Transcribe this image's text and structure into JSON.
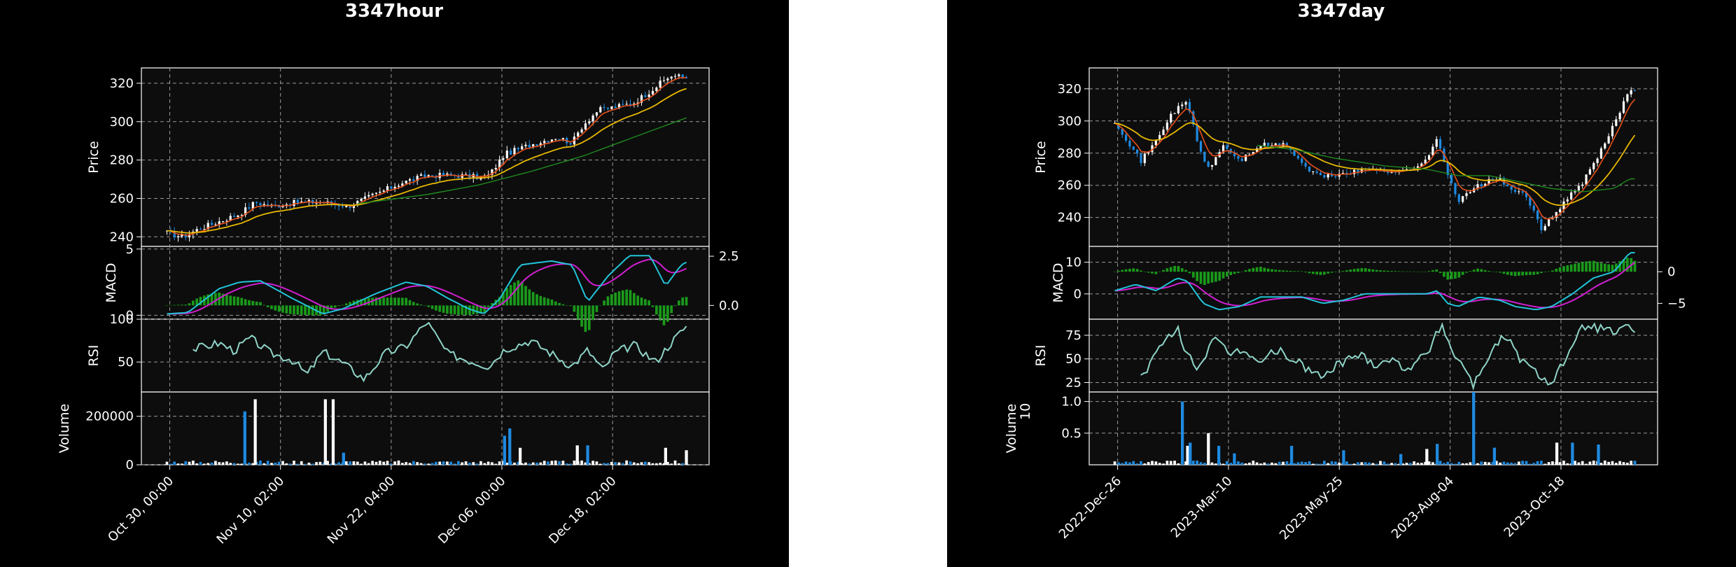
{
  "colors": {
    "background": "#000000",
    "plot_face": "#0d0d0d",
    "grid": "#9a9a9a",
    "up_candle": "#ffffff",
    "down_candle": "#1f8ae0",
    "ma_fast": "#e8501a",
    "ma_mid": "#e8b800",
    "ma_slow": "#1f8a1f",
    "macd_line": "#22c4d8",
    "signal_line": "#d21fd2",
    "hist": "#1a9a1a",
    "rsi": "#8fd4c8",
    "vol_up": "#ffffff",
    "vol_down": "#1f8ae0"
  },
  "chart_data": [
    {
      "id": "hour",
      "type": "candlestick",
      "title": "3347hour",
      "panels": {
        "price": {
          "ylabel": "Price",
          "ylim": [
            235,
            328
          ],
          "yticks": [
            240,
            260,
            280,
            300,
            320
          ]
        },
        "macd": {
          "ylabel": "MACD",
          "ylim": [
            -0.3,
            5.2
          ],
          "yticks_left": [
            0,
            5
          ],
          "ylim_right": [
            -0.7,
            3.0
          ],
          "yticks_right": [
            0.0,
            2.5
          ],
          "yticks_right_labels": [
            "0.0",
            "2.5"
          ]
        },
        "rsi": {
          "ylabel": "RSI",
          "ylim": [
            15,
            100
          ],
          "yticks": [
            50,
            100
          ]
        },
        "volume": {
          "ylabel": "Volume",
          "ylim": [
            0,
            300000
          ],
          "yticks": [
            0,
            200000
          ]
        }
      },
      "xticks": [
        {
          "pos": 0.05,
          "label": "Oct 30, 00:00"
        },
        {
          "pos": 0.245,
          "label": "Nov 10, 02:00"
        },
        {
          "pos": 0.44,
          "label": "Nov 22, 04:00"
        },
        {
          "pos": 0.635,
          "label": "Dec 06, 00:00"
        },
        {
          "pos": 0.83,
          "label": "Dec 18, 02:00"
        }
      ],
      "close_anchors": [
        [
          0,
          242
        ],
        [
          0.03,
          240
        ],
        [
          0.06,
          244
        ],
        [
          0.1,
          248
        ],
        [
          0.14,
          252
        ],
        [
          0.17,
          258
        ],
        [
          0.2,
          256
        ],
        [
          0.25,
          258
        ],
        [
          0.3,
          258
        ],
        [
          0.35,
          256
        ],
        [
          0.4,
          262
        ],
        [
          0.45,
          268
        ],
        [
          0.5,
          272
        ],
        [
          0.56,
          272
        ],
        [
          0.6,
          271
        ],
        [
          0.62,
          272
        ],
        [
          0.65,
          283
        ],
        [
          0.7,
          288
        ],
        [
          0.75,
          292
        ],
        [
          0.78,
          289
        ],
        [
          0.8,
          298
        ],
        [
          0.83,
          306
        ],
        [
          0.87,
          308
        ],
        [
          0.9,
          310
        ],
        [
          0.94,
          318
        ],
        [
          0.97,
          324
        ],
        [
          1.0,
          323
        ]
      ],
      "ma_slow_anchors": [
        [
          0.36,
          257
        ],
        [
          0.5,
          262
        ],
        [
          0.6,
          267
        ],
        [
          0.7,
          274
        ],
        [
          0.8,
          282
        ],
        [
          0.9,
          292
        ],
        [
          1.0,
          302
        ]
      ],
      "macd_anchors": [
        [
          0,
          0.1
        ],
        [
          0.04,
          0.2
        ],
        [
          0.1,
          2.0
        ],
        [
          0.14,
          2.5
        ],
        [
          0.18,
          2.6
        ],
        [
          0.24,
          1.3
        ],
        [
          0.3,
          0.1
        ],
        [
          0.34,
          0.5
        ],
        [
          0.4,
          1.6
        ],
        [
          0.46,
          2.5
        ],
        [
          0.5,
          2.2
        ],
        [
          0.54,
          1.3
        ],
        [
          0.58,
          0.5
        ],
        [
          0.61,
          0.1
        ],
        [
          0.64,
          1.2
        ],
        [
          0.68,
          3.8
        ],
        [
          0.74,
          4.1
        ],
        [
          0.78,
          3.8
        ],
        [
          0.81,
          1.0
        ],
        [
          0.85,
          3.0
        ],
        [
          0.89,
          4.5
        ],
        [
          0.93,
          4.5
        ],
        [
          0.96,
          2.2
        ],
        [
          0.99,
          3.8
        ],
        [
          1.0,
          4.0
        ]
      ],
      "rsi_anchors": [
        [
          0.05,
          65
        ],
        [
          0.1,
          72
        ],
        [
          0.13,
          63
        ],
        [
          0.16,
          78
        ],
        [
          0.2,
          60
        ],
        [
          0.24,
          53
        ],
        [
          0.27,
          35
        ],
        [
          0.3,
          62
        ],
        [
          0.34,
          48
        ],
        [
          0.38,
          30
        ],
        [
          0.42,
          60
        ],
        [
          0.46,
          68
        ],
        [
          0.5,
          97
        ],
        [
          0.54,
          60
        ],
        [
          0.58,
          52
        ],
        [
          0.62,
          45
        ],
        [
          0.65,
          65
        ],
        [
          0.7,
          75
        ],
        [
          0.74,
          60
        ],
        [
          0.78,
          45
        ],
        [
          0.81,
          64
        ],
        [
          0.84,
          40
        ],
        [
          0.86,
          60
        ],
        [
          0.9,
          70
        ],
        [
          0.94,
          50
        ],
        [
          0.97,
          72
        ],
        [
          1.0,
          92
        ],
        [
          1.02,
          78
        ]
      ],
      "volume_spikes": [
        [
          0.15,
          220000,
          1
        ],
        [
          0.17,
          270000,
          0
        ],
        [
          0.305,
          270000,
          0
        ],
        [
          0.32,
          270000,
          0
        ],
        [
          0.34,
          50000,
          1
        ],
        [
          0.65,
          120000,
          1
        ],
        [
          0.66,
          150000,
          1
        ],
        [
          0.68,
          70000,
          0
        ],
        [
          0.79,
          80000,
          0
        ],
        [
          0.81,
          80000,
          1
        ],
        [
          0.96,
          70000,
          0
        ],
        [
          1.0,
          60000,
          0
        ]
      ]
    },
    {
      "id": "day",
      "type": "candlestick",
      "title": "3347day",
      "panels": {
        "price": {
          "ylabel": "Price",
          "ylim": [
            222,
            333
          ],
          "yticks": [
            240,
            260,
            280,
            300,
            320
          ]
        },
        "macd": {
          "ylabel": "MACD",
          "ylim": [
            -8,
            15
          ],
          "yticks_left": [
            0,
            10
          ],
          "ylim_right": [
            -7.5,
            4.0
          ],
          "yticks_right": [
            -5,
            0
          ],
          "yticks_right_labels": [
            "−5",
            "0"
          ]
        },
        "rsi": {
          "ylabel": "RSI",
          "ylim": [
            15,
            92
          ],
          "yticks": [
            25,
            50,
            75
          ]
        },
        "volume": {
          "ylabel": "Volume",
          "ylim": [
            0,
            1150000
          ],
          "yticks": [
            500000,
            1000000
          ],
          "ytick_labels": [
            "0.5",
            "1.0"
          ],
          "offset_label": "1e6"
        }
      },
      "xticks": [
        {
          "pos": 0.05,
          "label": "2022-Dec-26"
        },
        {
          "pos": 0.245,
          "label": "2023-Mar-10"
        },
        {
          "pos": 0.44,
          "label": "2023-May-25"
        },
        {
          "pos": 0.635,
          "label": "2023-Aug-04"
        },
        {
          "pos": 0.83,
          "label": "2023-Oct-18"
        }
      ],
      "close_anchors": [
        [
          0,
          300
        ],
        [
          0.03,
          285
        ],
        [
          0.05,
          275
        ],
        [
          0.08,
          288
        ],
        [
          0.11,
          305
        ],
        [
          0.14,
          312
        ],
        [
          0.16,
          285
        ],
        [
          0.18,
          270
        ],
        [
          0.21,
          285
        ],
        [
          0.24,
          275
        ],
        [
          0.28,
          285
        ],
        [
          0.33,
          285
        ],
        [
          0.37,
          270
        ],
        [
          0.4,
          265
        ],
        [
          0.45,
          268
        ],
        [
          0.5,
          270
        ],
        [
          0.55,
          268
        ],
        [
          0.6,
          275
        ],
        [
          0.62,
          290
        ],
        [
          0.64,
          268
        ],
        [
          0.66,
          250
        ],
        [
          0.7,
          260
        ],
        [
          0.74,
          265
        ],
        [
          0.76,
          256
        ],
        [
          0.79,
          255
        ],
        [
          0.82,
          232
        ],
        [
          0.84,
          240
        ],
        [
          0.86,
          248
        ],
        [
          0.9,
          262
        ],
        [
          0.93,
          278
        ],
        [
          0.96,
          298
        ],
        [
          0.99,
          320
        ]
      ],
      "ma_slow_anchors": [
        [
          0.27,
          285
        ],
        [
          0.35,
          282
        ],
        [
          0.42,
          277
        ],
        [
          0.52,
          272
        ],
        [
          0.6,
          270
        ],
        [
          0.66,
          266
        ],
        [
          0.72,
          266
        ],
        [
          0.78,
          262
        ],
        [
          0.84,
          258
        ],
        [
          0.9,
          256
        ],
        [
          0.96,
          258
        ],
        [
          0.99,
          264
        ]
      ],
      "macd_anchors": [
        [
          0,
          1
        ],
        [
          0.04,
          3
        ],
        [
          0.08,
          1
        ],
        [
          0.12,
          5
        ],
        [
          0.14,
          4
        ],
        [
          0.17,
          -3
        ],
        [
          0.2,
          -5
        ],
        [
          0.24,
          -4
        ],
        [
          0.28,
          -1
        ],
        [
          0.32,
          -1
        ],
        [
          0.36,
          -1
        ],
        [
          0.4,
          -3
        ],
        [
          0.44,
          -2
        ],
        [
          0.48,
          0
        ],
        [
          0.52,
          0
        ],
        [
          0.56,
          0
        ],
        [
          0.6,
          0
        ],
        [
          0.62,
          1
        ],
        [
          0.64,
          -3
        ],
        [
          0.66,
          -4
        ],
        [
          0.7,
          -1
        ],
        [
          0.74,
          -2
        ],
        [
          0.77,
          -4
        ],
        [
          0.81,
          -5
        ],
        [
          0.84,
          -4
        ],
        [
          0.88,
          0
        ],
        [
          0.92,
          5
        ],
        [
          0.96,
          7
        ],
        [
          0.99,
          13
        ]
      ],
      "rsi_anchors": [
        [
          0.05,
          30
        ],
        [
          0.08,
          55
        ],
        [
          0.1,
          70
        ],
        [
          0.12,
          82
        ],
        [
          0.14,
          55
        ],
        [
          0.16,
          40
        ],
        [
          0.19,
          70
        ],
        [
          0.22,
          55
        ],
        [
          0.25,
          60
        ],
        [
          0.28,
          45
        ],
        [
          0.31,
          60
        ],
        [
          0.34,
          50
        ],
        [
          0.37,
          40
        ],
        [
          0.4,
          30
        ],
        [
          0.43,
          45
        ],
        [
          0.47,
          55
        ],
        [
          0.5,
          45
        ],
        [
          0.53,
          50
        ],
        [
          0.56,
          40
        ],
        [
          0.6,
          55
        ],
        [
          0.63,
          88
        ],
        [
          0.65,
          55
        ],
        [
          0.67,
          45
        ],
        [
          0.69,
          22
        ],
        [
          0.72,
          55
        ],
        [
          0.75,
          75
        ],
        [
          0.78,
          50
        ],
        [
          0.81,
          35
        ],
        [
          0.84,
          25
        ],
        [
          0.86,
          45
        ],
        [
          0.88,
          60
        ],
        [
          0.9,
          85
        ],
        [
          0.93,
          83
        ],
        [
          0.96,
          78
        ],
        [
          0.98,
          82
        ],
        [
          1.0,
          82
        ]
      ],
      "volume_spikes": [
        [
          0.13,
          1000000,
          1
        ],
        [
          0.14,
          300000,
          0
        ],
        [
          0.145,
          350000,
          1
        ],
        [
          0.18,
          500000,
          0
        ],
        [
          0.2,
          300000,
          1
        ],
        [
          0.23,
          180000,
          1
        ],
        [
          0.34,
          300000,
          1
        ],
        [
          0.44,
          230000,
          1
        ],
        [
          0.55,
          170000,
          1
        ],
        [
          0.6,
          250000,
          0
        ],
        [
          0.62,
          330000,
          1
        ],
        [
          0.69,
          1150000,
          1
        ],
        [
          0.73,
          270000,
          1
        ],
        [
          0.85,
          350000,
          0
        ],
        [
          0.88,
          350000,
          1
        ],
        [
          0.93,
          320000,
          1
        ]
      ]
    }
  ]
}
